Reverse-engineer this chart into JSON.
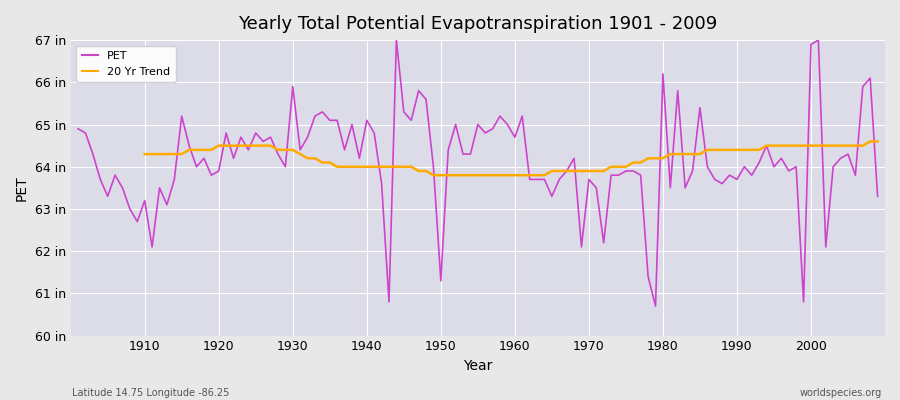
{
  "title": "Yearly Total Potential Evapotranspiration 1901 - 2009",
  "xlabel": "Year",
  "ylabel": "PET",
  "years": [
    1901,
    1902,
    1903,
    1904,
    1905,
    1906,
    1907,
    1908,
    1909,
    1910,
    1911,
    1912,
    1913,
    1914,
    1915,
    1916,
    1917,
    1918,
    1919,
    1920,
    1921,
    1922,
    1923,
    1924,
    1925,
    1926,
    1927,
    1928,
    1929,
    1930,
    1931,
    1932,
    1933,
    1934,
    1935,
    1936,
    1937,
    1938,
    1939,
    1940,
    1941,
    1942,
    1943,
    1944,
    1945,
    1946,
    1947,
    1948,
    1949,
    1950,
    1951,
    1952,
    1953,
    1954,
    1955,
    1956,
    1957,
    1958,
    1959,
    1960,
    1961,
    1962,
    1963,
    1964,
    1965,
    1966,
    1967,
    1968,
    1969,
    1970,
    1971,
    1972,
    1973,
    1974,
    1975,
    1976,
    1977,
    1978,
    1979,
    1980,
    1981,
    1982,
    1983,
    1984,
    1985,
    1986,
    1987,
    1988,
    1989,
    1990,
    1991,
    1992,
    1993,
    1994,
    1995,
    1996,
    1997,
    1998,
    1999,
    2000,
    2001,
    2002,
    2003,
    2004,
    2005,
    2006,
    2007,
    2008,
    2009
  ],
  "pet": [
    64.9,
    64.8,
    64.3,
    63.7,
    63.3,
    63.8,
    63.5,
    63.0,
    62.7,
    63.2,
    62.1,
    63.5,
    63.1,
    63.7,
    65.2,
    64.5,
    64.0,
    64.2,
    63.8,
    63.9,
    64.8,
    64.2,
    64.7,
    64.4,
    64.8,
    64.6,
    64.7,
    64.3,
    64.0,
    65.9,
    64.4,
    64.7,
    65.2,
    65.3,
    65.1,
    65.1,
    64.4,
    65.0,
    64.2,
    65.1,
    64.8,
    63.6,
    60.8,
    67.0,
    65.3,
    65.1,
    65.8,
    65.6,
    64.0,
    61.3,
    64.4,
    65.0,
    64.3,
    64.3,
    65.0,
    64.8,
    64.9,
    65.2,
    65.0,
    64.7,
    65.2,
    63.7,
    63.7,
    63.7,
    63.3,
    63.7,
    63.9,
    64.2,
    62.1,
    63.7,
    63.5,
    62.2,
    63.8,
    63.8,
    63.9,
    63.9,
    63.8,
    61.4,
    60.7,
    66.2,
    63.5,
    65.8,
    63.5,
    63.9,
    65.4,
    64.0,
    63.7,
    63.6,
    63.8,
    63.7,
    64.0,
    63.8,
    64.1,
    64.5,
    64.0,
    64.2,
    63.9,
    64.0,
    60.8,
    66.9,
    67.0,
    62.1,
    64.0,
    64.2,
    64.3,
    63.8,
    65.9,
    66.1,
    63.3
  ],
  "trend_years": [
    1910,
    1911,
    1912,
    1913,
    1914,
    1915,
    1916,
    1917,
    1918,
    1919,
    1920,
    1921,
    1922,
    1923,
    1924,
    1925,
    1926,
    1927,
    1928,
    1929,
    1930,
    1931,
    1932,
    1933,
    1934,
    1935,
    1936,
    1937,
    1938,
    1939,
    1940,
    1941,
    1942,
    1943,
    1944,
    1945,
    1946,
    1947,
    1948,
    1949,
    1950,
    1951,
    1952,
    1953,
    1954,
    1955,
    1956,
    1957,
    1958,
    1959,
    1960,
    1961,
    1962,
    1963,
    1964,
    1965,
    1966,
    1967,
    1968,
    1969,
    1970,
    1971,
    1972,
    1973,
    1974,
    1975,
    1976,
    1977,
    1978,
    1979,
    1980,
    1981,
    1982,
    1983,
    1984,
    1985,
    1986,
    1987,
    1988,
    1989,
    1990,
    1991,
    1992,
    1993,
    1994,
    1995,
    1996,
    1997,
    1998,
    1999,
    2000,
    2001,
    2002,
    2003,
    2004,
    2005,
    2006,
    2007,
    2008,
    2009
  ],
  "trend": [
    64.3,
    64.3,
    64.3,
    64.3,
    64.3,
    64.3,
    64.4,
    64.4,
    64.4,
    64.4,
    64.5,
    64.5,
    64.5,
    64.5,
    64.5,
    64.5,
    64.5,
    64.5,
    64.4,
    64.4,
    64.4,
    64.3,
    64.2,
    64.2,
    64.1,
    64.1,
    64.0,
    64.0,
    64.0,
    64.0,
    64.0,
    64.0,
    64.0,
    64.0,
    64.0,
    64.0,
    64.0,
    63.9,
    63.9,
    63.8,
    63.8,
    63.8,
    63.8,
    63.8,
    63.8,
    63.8,
    63.8,
    63.8,
    63.8,
    63.8,
    63.8,
    63.8,
    63.8,
    63.8,
    63.8,
    63.9,
    63.9,
    63.9,
    63.9,
    63.9,
    63.9,
    63.9,
    63.9,
    64.0,
    64.0,
    64.0,
    64.1,
    64.1,
    64.2,
    64.2,
    64.2,
    64.3,
    64.3,
    64.3,
    64.3,
    64.3,
    64.4,
    64.4,
    64.4,
    64.4,
    64.4,
    64.4,
    64.4,
    64.4,
    64.5,
    64.5,
    64.5,
    64.5,
    64.5,
    64.5,
    64.5,
    64.5,
    64.5,
    64.5,
    64.5,
    64.5,
    64.5,
    64.5,
    64.6,
    64.6
  ],
  "pet_color": "#cc44cc",
  "trend_color": "#ffaa00",
  "bg_color": "#e8e8e8",
  "plot_bg": "#dcdce8",
  "ylim": [
    60,
    67
  ],
  "ytick_labels": [
    "60 in",
    "61 in",
    "62 in",
    "63 in",
    "64 in",
    "65 in",
    "66 in",
    "67 in"
  ],
  "ytick_vals": [
    60,
    61,
    62,
    63,
    64,
    65,
    66,
    67
  ],
  "xtick_vals": [
    1910,
    1920,
    1930,
    1940,
    1950,
    1960,
    1970,
    1980,
    1990,
    2000
  ],
  "grid_color": "#ffffff",
  "subtitle_left": "Latitude 14.75 Longitude -86.25",
  "subtitle_right": "worldspecies.org",
  "legend_labels": [
    "PET",
    "20 Yr Trend"
  ]
}
